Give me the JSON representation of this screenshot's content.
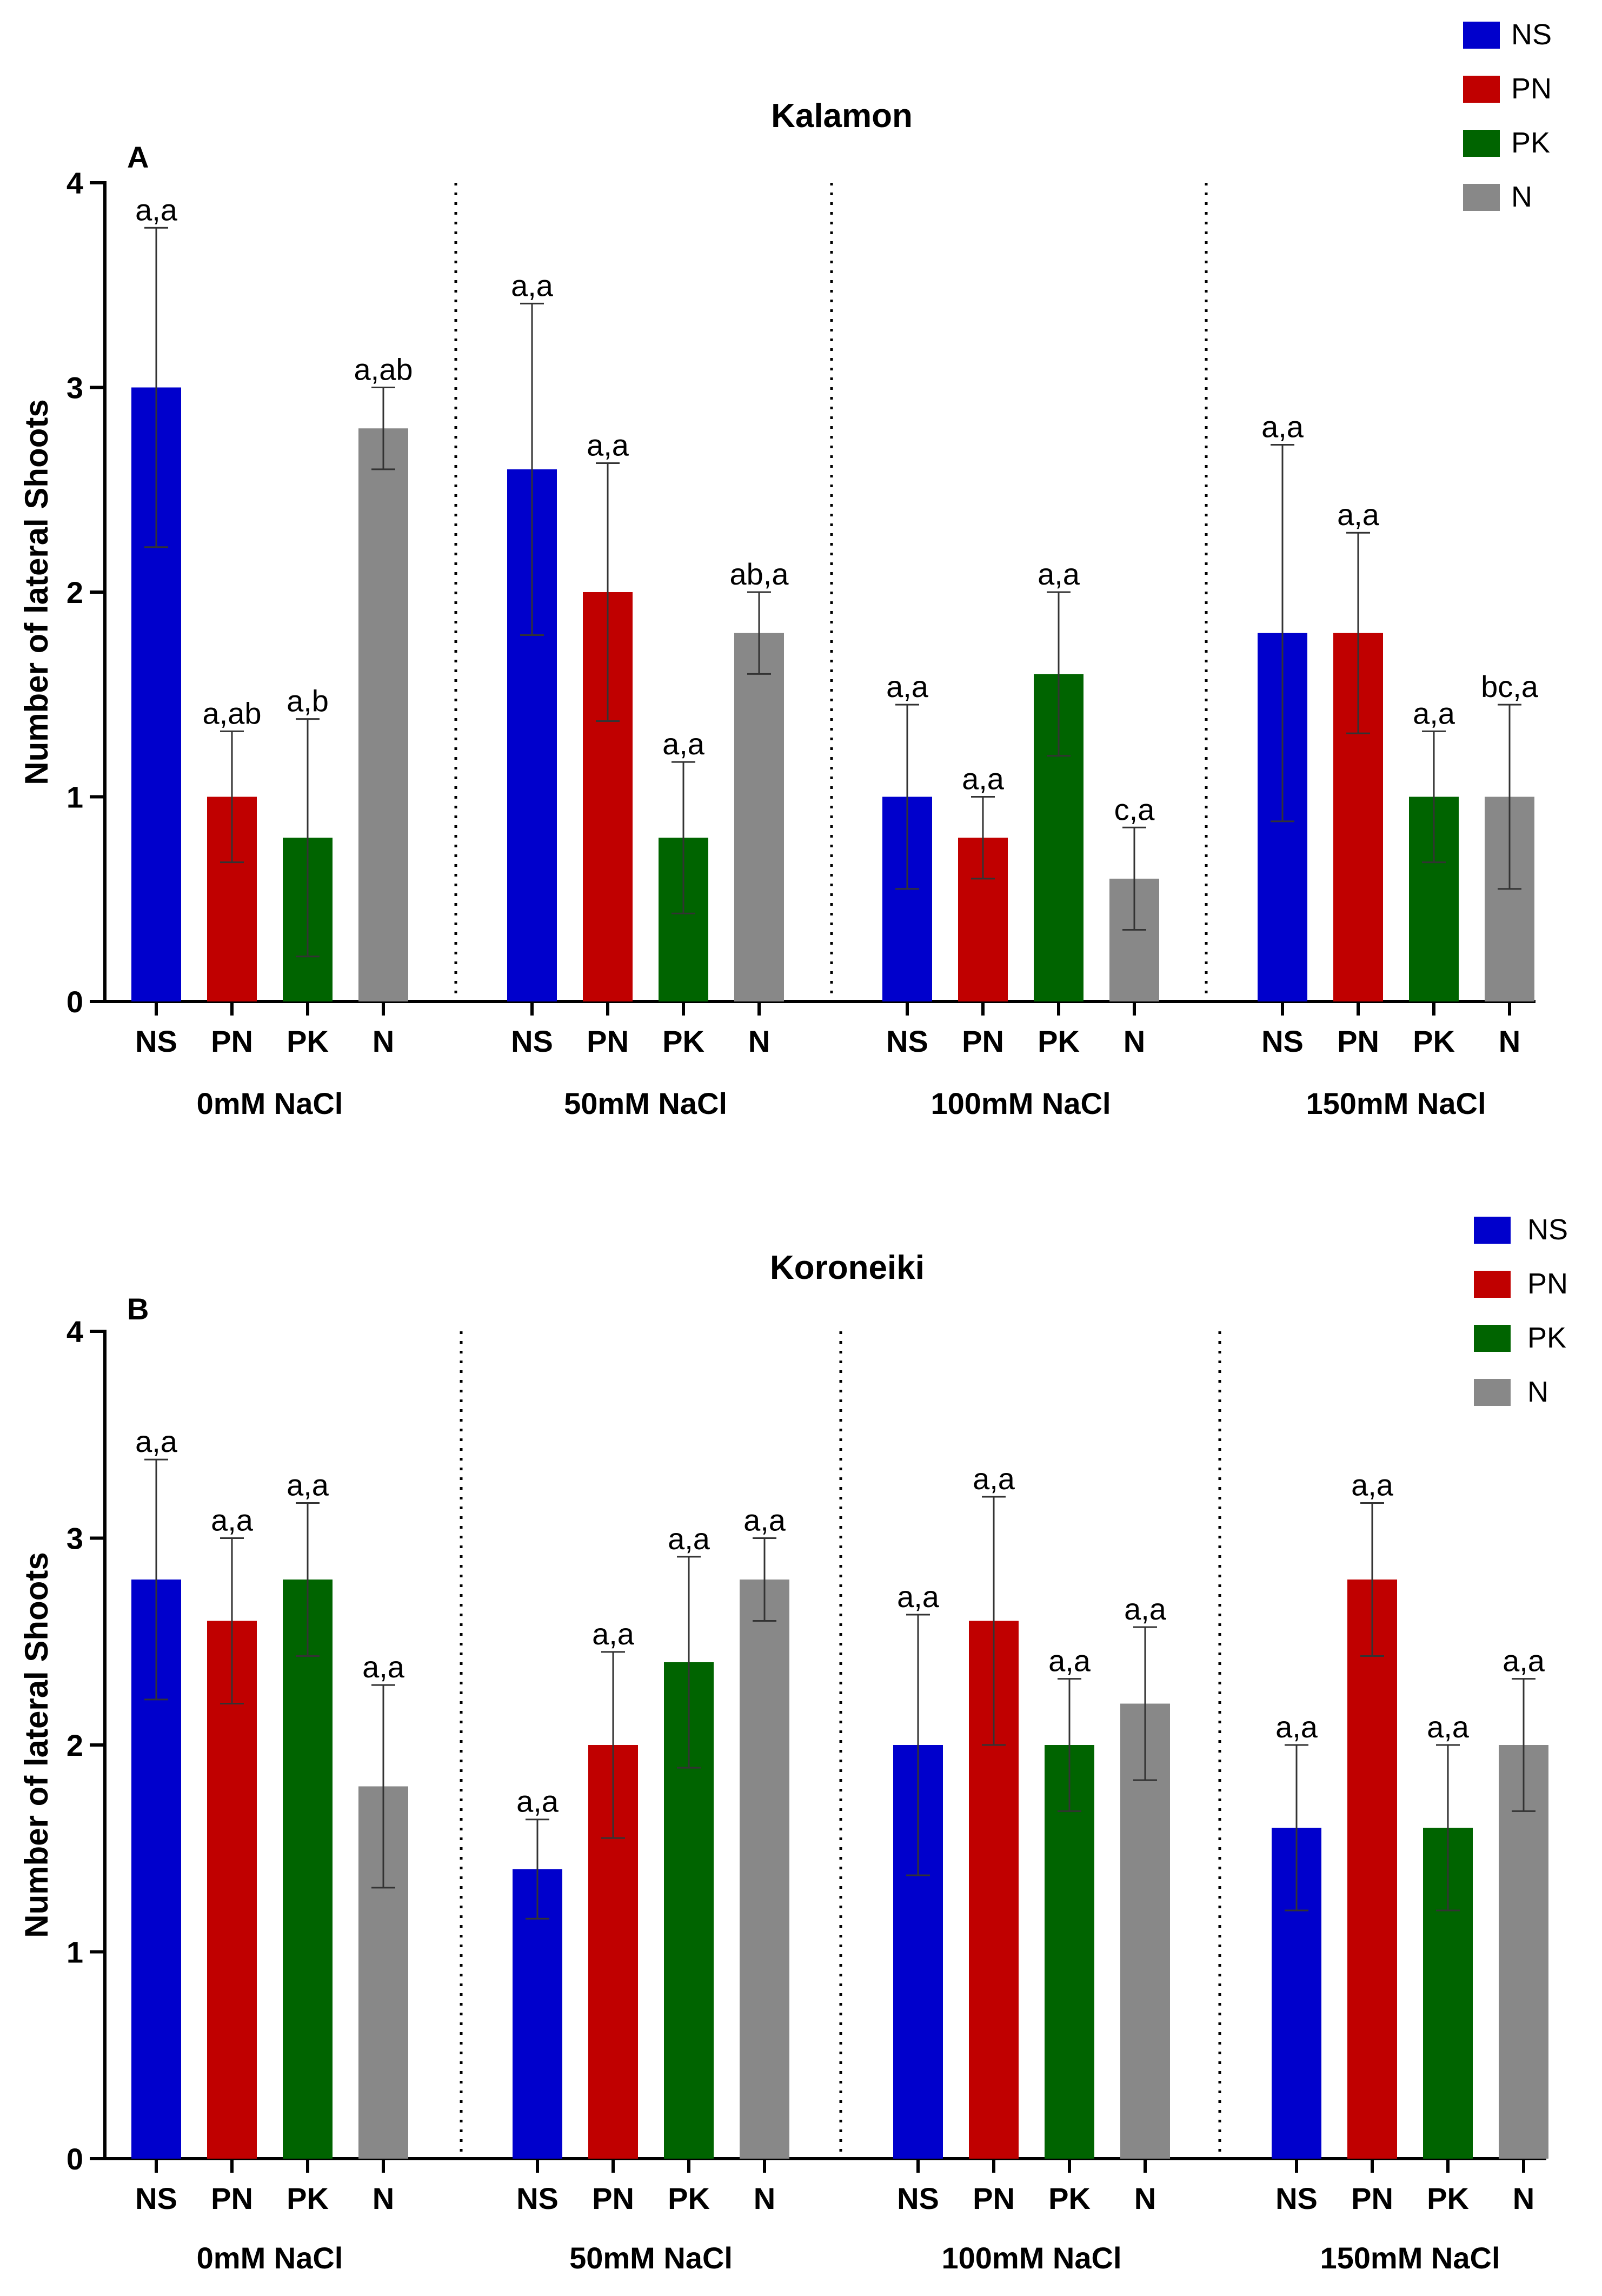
{
  "chart_data": [
    {
      "type": "bar",
      "panel": "A",
      "title": "Kalamon",
      "ylabel": "Number of lateral Shoots",
      "ylim": [
        0,
        4
      ],
      "yticks": [
        0,
        1,
        2,
        3,
        4
      ],
      "grid": false,
      "legend_position": "top-right",
      "series_names": [
        "NS",
        "PN",
        "PK",
        "N"
      ],
      "series_colors": [
        "#0000cc",
        "#c00000",
        "#006400",
        "#888888"
      ],
      "groups": [
        {
          "label": "0mM NaCl",
          "bars": [
            {
              "series": "NS",
              "value": 3.0,
              "error": 0.78,
              "sig": "a,a"
            },
            {
              "series": "PN",
              "value": 1.0,
              "error": 0.32,
              "sig": "a,ab"
            },
            {
              "series": "PK",
              "value": 0.8,
              "error": 0.58,
              "sig": "a,b"
            },
            {
              "series": "N",
              "value": 2.8,
              "error": 0.2,
              "sig": "a,ab"
            }
          ]
        },
        {
          "label": "50mM NaCl",
          "bars": [
            {
              "series": "NS",
              "value": 2.6,
              "error": 0.81,
              "sig": "a,a"
            },
            {
              "series": "PN",
              "value": 2.0,
              "error": 0.63,
              "sig": "a,a"
            },
            {
              "series": "PK",
              "value": 0.8,
              "error": 0.37,
              "sig": "a,a"
            },
            {
              "series": "N",
              "value": 1.8,
              "error": 0.2,
              "sig": "ab,a"
            }
          ]
        },
        {
          "label": "100mM NaCl",
          "bars": [
            {
              "series": "NS",
              "value": 1.0,
              "error": 0.45,
              "sig": "a,a"
            },
            {
              "series": "PN",
              "value": 0.8,
              "error": 0.2,
              "sig": "a,a"
            },
            {
              "series": "PK",
              "value": 1.6,
              "error": 0.4,
              "sig": "a,a"
            },
            {
              "series": "N",
              "value": 0.6,
              "error": 0.25,
              "sig": "c,a"
            }
          ]
        },
        {
          "label": "150mM NaCl",
          "bars": [
            {
              "series": "NS",
              "value": 1.8,
              "error": 0.92,
              "sig": "a,a"
            },
            {
              "series": "PN",
              "value": 1.8,
              "error": 0.49,
              "sig": "a,a"
            },
            {
              "series": "PK",
              "value": 1.0,
              "error": 0.32,
              "sig": "a,a"
            },
            {
              "series": "N",
              "value": 1.0,
              "error": 0.45,
              "sig": "bc,a"
            }
          ]
        }
      ]
    },
    {
      "type": "bar",
      "panel": "B",
      "title": "Koroneiki",
      "ylabel": "Number of lateral Shoots",
      "ylim": [
        0,
        4
      ],
      "yticks": [
        0,
        1,
        2,
        3,
        4
      ],
      "grid": false,
      "legend_position": "top-right",
      "series_names": [
        "NS",
        "PN",
        "PK",
        "N"
      ],
      "series_colors": [
        "#0000cc",
        "#c00000",
        "#006400",
        "#888888"
      ],
      "groups": [
        {
          "label": "0mM NaCl",
          "bars": [
            {
              "series": "NS",
              "value": 2.8,
              "error": 0.58,
              "sig": "a,a"
            },
            {
              "series": "PN",
              "value": 2.6,
              "error": 0.4,
              "sig": "a,a"
            },
            {
              "series": "PK",
              "value": 2.8,
              "error": 0.37,
              "sig": "a,a"
            },
            {
              "series": "N",
              "value": 1.8,
              "error": 0.49,
              "sig": "a,a"
            }
          ]
        },
        {
          "label": "50mM NaCl",
          "bars": [
            {
              "series": "NS",
              "value": 1.4,
              "error": 0.24,
              "sig": "a,a"
            },
            {
              "series": "PN",
              "value": 2.0,
              "error": 0.45,
              "sig": "a,a"
            },
            {
              "series": "PK",
              "value": 2.4,
              "error": 0.51,
              "sig": "a,a"
            },
            {
              "series": "N",
              "value": 2.8,
              "error": 0.2,
              "sig": "a,a"
            }
          ]
        },
        {
          "label": "100mM NaCl",
          "bars": [
            {
              "series": "NS",
              "value": 2.0,
              "error": 0.63,
              "sig": "a,a"
            },
            {
              "series": "PN",
              "value": 2.6,
              "error": 0.6,
              "sig": "a,a"
            },
            {
              "series": "PK",
              "value": 2.0,
              "error": 0.32,
              "sig": "a,a"
            },
            {
              "series": "N",
              "value": 2.2,
              "error": 0.37,
              "sig": "a,a"
            }
          ]
        },
        {
          "label": "150mM NaCl",
          "bars": [
            {
              "series": "NS",
              "value": 1.6,
              "error": 0.4,
              "sig": "a,a"
            },
            {
              "series": "PN",
              "value": 2.8,
              "error": 0.37,
              "sig": "a,a"
            },
            {
              "series": "PK",
              "value": 1.6,
              "error": 0.4,
              "sig": "a,a"
            },
            {
              "series": "N",
              "value": 2.0,
              "error": 0.32,
              "sig": "a,a"
            }
          ]
        }
      ]
    }
  ]
}
